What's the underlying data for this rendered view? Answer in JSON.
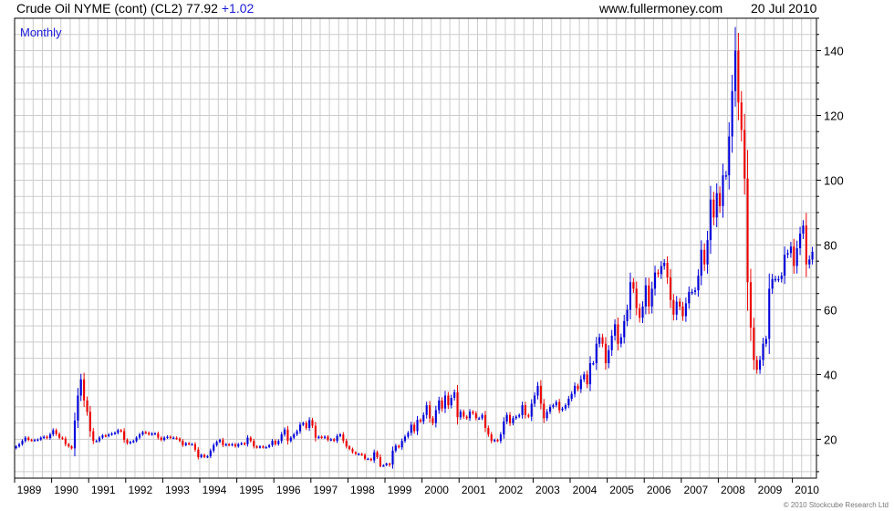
{
  "header": {
    "instrument": "Crude Oil NYME (cont) (CL2)",
    "last": "77.92",
    "change": "+1.02",
    "site": "www.fullermoney.com",
    "date": "20 Jul 2010"
  },
  "credit": "© 2010 Stockcube Research Ltd",
  "colors": {
    "up": "#0000dd",
    "down": "#ee0000",
    "grid": "#cccccc",
    "axis": "#000000",
    "period_label": "#1a1ad6"
  },
  "chart_data": {
    "type": "candlestick",
    "period_label": "Monthly",
    "x_tick_labels": [
      "1989",
      "1990",
      "1991",
      "1992",
      "1993",
      "1994",
      "1995",
      "1996",
      "1997",
      "1998",
      "1999",
      "2000",
      "2001",
      "2002",
      "2003",
      "2004",
      "2005",
      "2006",
      "2007",
      "2008",
      "2009",
      "2010"
    ],
    "y_tick_labels": [
      "20",
      "40",
      "60",
      "80",
      "100",
      "120",
      "140"
    ],
    "xlim": [
      1989.0,
      2010.65
    ],
    "ylim": [
      8,
      150
    ],
    "y_axis_side": "right",
    "grid": true,
    "monthly_close": [
      17.8,
      18.5,
      19.5,
      20.5,
      19.8,
      19.7,
      19.8,
      19.9,
      20.5,
      20.8,
      20.4,
      21.5,
      22.8,
      21.6,
      20.5,
      20.2,
      18.5,
      17.8,
      17.2,
      25.8,
      33.5,
      38.5,
      32.0,
      28.5,
      22.5,
      19.5,
      19.5,
      20.5,
      21.2,
      21.0,
      21.5,
      21.8,
      22.0,
      22.8,
      22.5,
      19.8,
      18.8,
      19.2,
      19.5,
      20.5,
      21.5,
      22.2,
      22.0,
      21.5,
      21.8,
      21.8,
      20.5,
      19.8,
      20.5,
      20.8,
      20.5,
      20.5,
      20.2,
      19.5,
      18.2,
      18.8,
      18.5,
      18.5,
      16.8,
      14.5,
      15.2,
      14.5,
      14.8,
      16.5,
      18.2,
      19.2,
      19.8,
      18.2,
      18.5,
      18.2,
      18.5,
      17.8,
      18.5,
      18.8,
      18.5,
      20.5,
      19.5,
      17.8,
      17.5,
      17.8,
      17.5,
      17.6,
      18.2,
      19.5,
      18.5,
      19.5,
      21.5,
      23.0,
      19.5,
      20.5,
      21.5,
      22.5,
      24.5,
      25.0,
      23.5,
      25.9,
      24.2,
      20.5,
      20.8,
      20.5,
      20.8,
      19.8,
      20.0,
      19.5,
      21.0,
      21.5,
      19.5,
      17.8,
      17.0,
      16.0,
      15.5,
      15.5,
      15.2,
      14.0,
      14.0,
      13.5,
      16.0,
      14.5,
      11.5,
      12.0,
      12.5,
      12.2,
      16.5,
      18.0,
      17.5,
      19.5,
      20.8,
      22.0,
      24.5,
      22.5,
      26.0,
      25.5,
      27.5,
      30.5,
      26.5,
      25.0,
      29.0,
      32.0,
      29.5,
      33.5,
      30.5,
      32.8,
      34.5,
      26.8,
      28.5,
      27.0,
      26.5,
      28.5,
      28.0,
      26.5,
      26.5,
      27.5,
      23.5,
      21.5,
      19.5,
      19.8,
      19.5,
      21.5,
      25.5,
      27.5,
      25.0,
      26.5,
      27.0,
      27.5,
      30.5,
      27.5,
      27.0,
      31.0,
      33.5,
      36.5,
      31.0,
      26.5,
      28.5,
      30.0,
      30.5,
      31.5,
      29.0,
      29.5,
      30.5,
      32.5,
      34.0,
      36.5,
      35.5,
      38.5,
      40.0,
      37.0,
      43.5,
      43.5,
      49.5,
      51.5,
      49.5,
      43.5,
      47.5,
      52.0,
      55.5,
      49.5,
      51.5,
      56.5,
      60.0,
      68.5,
      66.5,
      60.5,
      57.5,
      61.0,
      67.5,
      61.0,
      66.5,
      71.5,
      71.0,
      73.5,
      74.5,
      70.0,
      63.0,
      58.5,
      62.5,
      61.0,
      58.0,
      62.0,
      65.5,
      65.5,
      66.0,
      70.5,
      78.5,
      74.0,
      81.5,
      94.0,
      88.5,
      96.0,
      92.0,
      101.5,
      101.5,
      113.5,
      127.5,
      140.0,
      124.0,
      115.5,
      100.5,
      68.5,
      54.5,
      44.5,
      41.5,
      44.5,
      49.5,
      51.0,
      66.5,
      69.5,
      69.5,
      69.5,
      70.5,
      77.0,
      77.5,
      79.5,
      73.5,
      79.0,
      83.5,
      86.0,
      74.0,
      75.5,
      77.9
    ],
    "range_max": 147.3,
    "range_min": 11.5
  }
}
